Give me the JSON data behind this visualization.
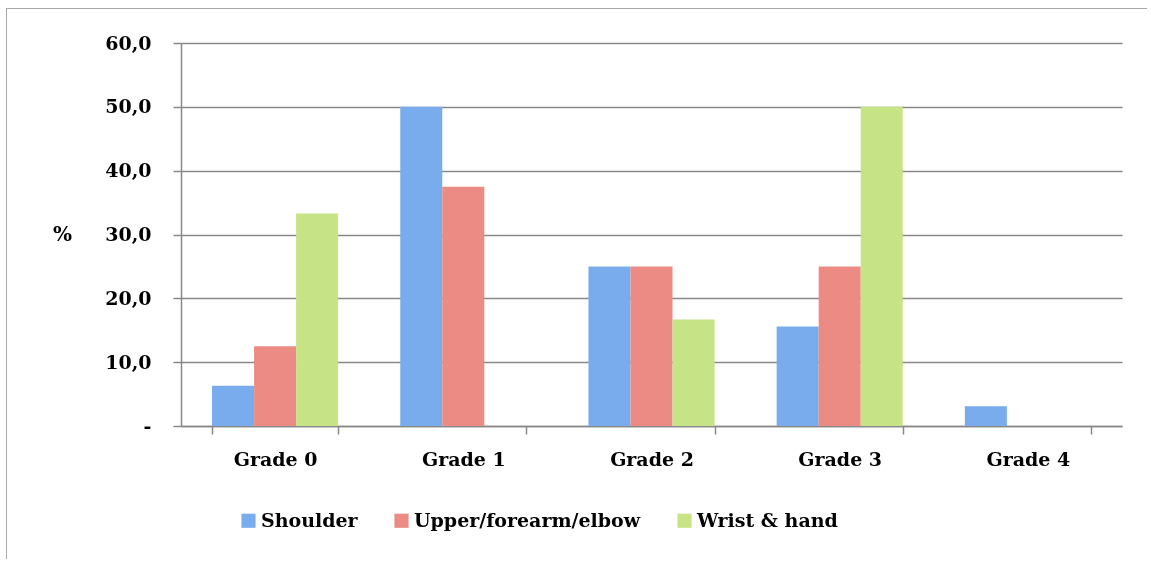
{
  "chart_data": {
    "type": "bar",
    "ylabel": "%",
    "categories": [
      "Grade 0",
      "Grade 1",
      "Grade 2",
      "Grade 3",
      "Grade 4"
    ],
    "series": [
      {
        "name": "Shoulder",
        "color": "#78acec",
        "values": [
          6.3,
          50.0,
          25.0,
          15.6,
          3.1
        ]
      },
      {
        "name": "Upper/forearm/elbow",
        "color": "#ec8a84",
        "values": [
          12.5,
          37.5,
          25.0,
          25.0,
          0
        ]
      },
      {
        "name": "Wrist & hand",
        "color": "#c6e386",
        "values": [
          33.3,
          0,
          16.7,
          50.0,
          0
        ]
      }
    ],
    "ylim": [
      0,
      60
    ],
    "yticks": [
      {
        "value": 0,
        "label": "-"
      },
      {
        "value": 10,
        "label": "10,0"
      },
      {
        "value": 20,
        "label": "20,0"
      },
      {
        "value": 30,
        "label": "30,0"
      },
      {
        "value": 40,
        "label": "40,0"
      },
      {
        "value": 50,
        "label": "50,0"
      },
      {
        "value": 60,
        "label": "60,0"
      }
    ],
    "grid": "y",
    "legend": "bottom"
  }
}
